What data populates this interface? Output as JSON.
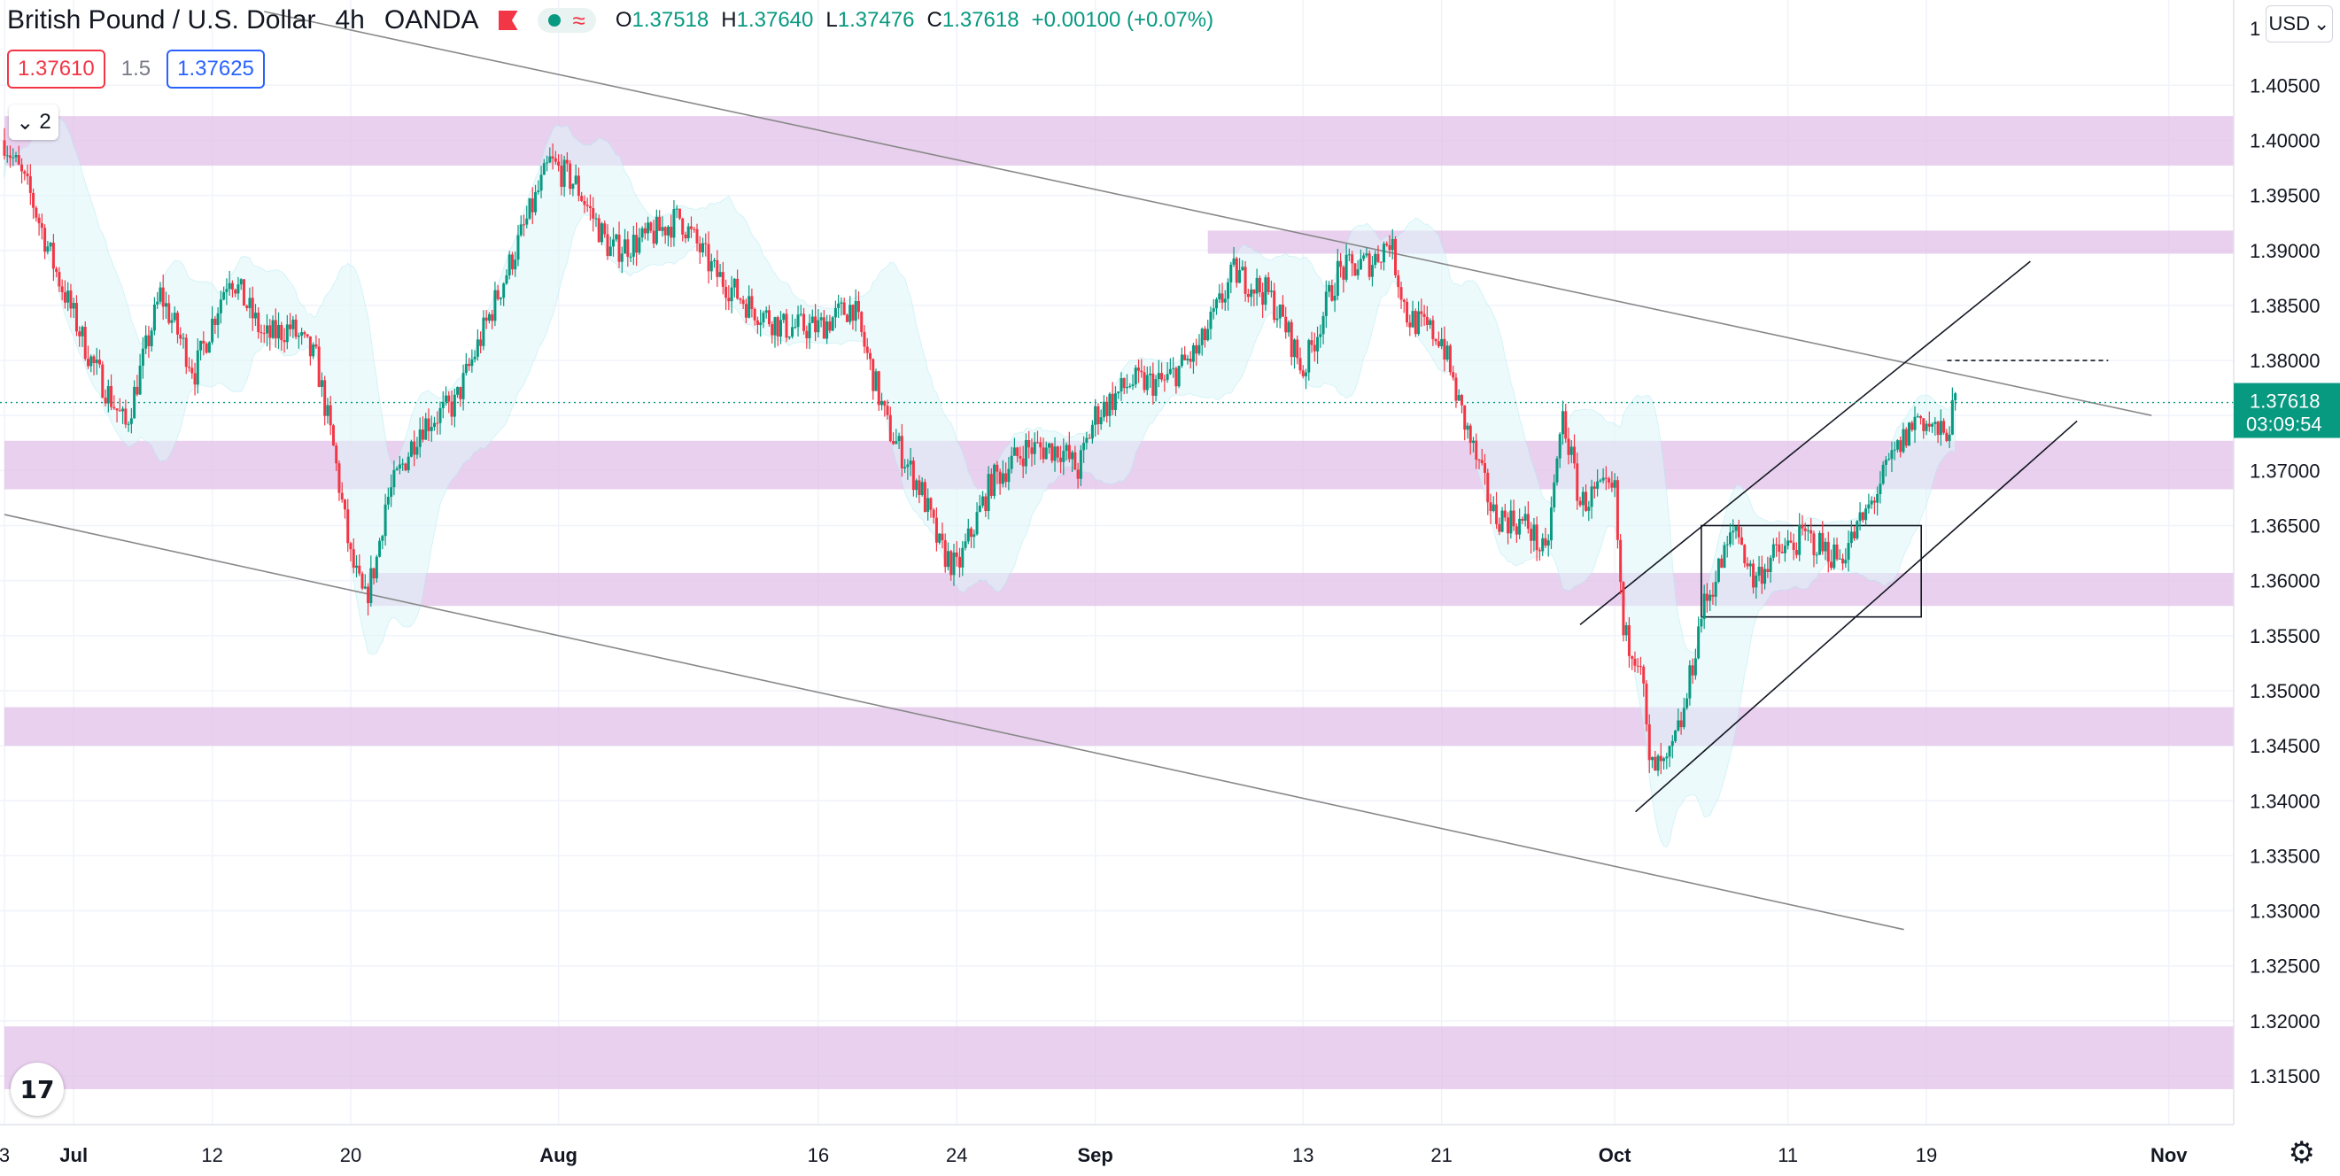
{
  "header": {
    "symbol": "British Pound / U.S. Dollar",
    "interval": "4h",
    "exchange": "OANDA",
    "ohlc": {
      "o_label": "O",
      "o": "1.37518",
      "h_label": "H",
      "h": "1.37640",
      "l_label": "L",
      "l": "1.37476",
      "c_label": "C",
      "c": "1.37618",
      "change": "+0.00100 (+0.07%)"
    }
  },
  "quote": {
    "sell": "1.37610",
    "spread": "1.5",
    "buy": "1.37625"
  },
  "indicators_count": "2",
  "currency_select": "USD",
  "last_price": {
    "value": "1.37618",
    "countdown": "03:09:54"
  },
  "colors": {
    "up": "#089981",
    "down": "#f23645",
    "zone": "#e1bee7",
    "bands": "#e0f7fa"
  },
  "icons": [
    "flag-icon",
    "eye-icon",
    "wave-icon",
    "chevron-down-icon",
    "tradingview-logo",
    "gear-icon"
  ],
  "chart_data": {
    "type": "candlestick",
    "symbol": "GBPUSD",
    "interval": "4h",
    "y_ticks": [
      "1.31500",
      "1.32000",
      "1.32500",
      "1.33000",
      "1.33500",
      "1.34000",
      "1.34500",
      "1.35000",
      "1.35500",
      "1.36000",
      "1.36500",
      "1.37000",
      "1.37500",
      "1.38000",
      "1.38500",
      "1.39000",
      "1.39500",
      "1.40000",
      "1.40500"
    ],
    "y_tick_values": [
      1.315,
      1.32,
      1.325,
      1.33,
      1.335,
      1.34,
      1.345,
      1.35,
      1.355,
      1.36,
      1.365,
      1.37,
      1.375,
      1.38,
      1.385,
      1.39,
      1.395,
      1.4,
      1.405
    ],
    "y_top_partial": "1",
    "ylim": [
      1.3105,
      1.4117
    ],
    "x_ticks": [
      {
        "label": "3",
        "day": 0
      },
      {
        "label": "Jul",
        "day": 4
      },
      {
        "label": "12",
        "day": 12
      },
      {
        "label": "20",
        "day": 20
      },
      {
        "label": "Aug",
        "day": 32
      },
      {
        "label": "16",
        "day": 47
      },
      {
        "label": "24",
        "day": 55
      },
      {
        "label": "Sep",
        "day": 63
      },
      {
        "label": "13",
        "day": 75
      },
      {
        "label": "21",
        "day": 83
      },
      {
        "label": "Oct",
        "day": 93
      },
      {
        "label": "11",
        "day": 103
      },
      {
        "label": "19",
        "day": 111
      },
      {
        "label": "Nov",
        "day": 125
      }
    ],
    "x_tick_bold": [
      "Jul",
      "Aug",
      "Sep",
      "Oct",
      "Nov"
    ],
    "xlim_days": [
      0,
      126.5
    ],
    "x_day0": "June 27",
    "price_path": [
      [
        0,
        1.4
      ],
      [
        1.5,
        1.395
      ],
      [
        3,
        1.388
      ],
      [
        5,
        1.38
      ],
      [
        7,
        1.374
      ],
      [
        9,
        1.386
      ],
      [
        11,
        1.379
      ],
      [
        13,
        1.388
      ],
      [
        15,
        1.382
      ],
      [
        16.5,
        1.383
      ],
      [
        18,
        1.38
      ],
      [
        19,
        1.372
      ],
      [
        20,
        1.362
      ],
      [
        20.8,
        1.358
      ],
      [
        21.5,
        1.362
      ],
      [
        22,
        1.367
      ],
      [
        24,
        1.374
      ],
      [
        26,
        1.376
      ],
      [
        28,
        1.384
      ],
      [
        30,
        1.392
      ],
      [
        31.5,
        1.398
      ],
      [
        33,
        1.396
      ],
      [
        35,
        1.39
      ],
      [
        37,
        1.391
      ],
      [
        39,
        1.393
      ],
      [
        41,
        1.388
      ],
      [
        43,
        1.385
      ],
      [
        45,
        1.383
      ],
      [
        47,
        1.383
      ],
      [
        49,
        1.385
      ],
      [
        51,
        1.374
      ],
      [
        53,
        1.368
      ],
      [
        54,
        1.363
      ],
      [
        55,
        1.361
      ],
      [
        57,
        1.369
      ],
      [
        59,
        1.372
      ],
      [
        61,
        1.372
      ],
      [
        62,
        1.37
      ],
      [
        63,
        1.375
      ],
      [
        65,
        1.378
      ],
      [
        67,
        1.378
      ],
      [
        69,
        1.381
      ],
      [
        71,
        1.388
      ],
      [
        73,
        1.386
      ],
      [
        74,
        1.383
      ],
      [
        75,
        1.379
      ],
      [
        77,
        1.388
      ],
      [
        79,
        1.389
      ],
      [
        80,
        1.391
      ],
      [
        81,
        1.384
      ],
      [
        83,
        1.382
      ],
      [
        84,
        1.376
      ],
      [
        86,
        1.366
      ],
      [
        88,
        1.365
      ],
      [
        89,
        1.362
      ],
      [
        90,
        1.375
      ],
      [
        91,
        1.367
      ],
      [
        92,
        1.368
      ],
      [
        93,
        1.368
      ],
      [
        93.5,
        1.355
      ],
      [
        94.5,
        1.353
      ],
      [
        95,
        1.343
      ],
      [
        96,
        1.343
      ],
      [
        97,
        1.348
      ],
      [
        98,
        1.357
      ],
      [
        100,
        1.365
      ],
      [
        101,
        1.36
      ],
      [
        102,
        1.362
      ],
      [
        104,
        1.364
      ],
      [
        106,
        1.362
      ],
      [
        107.5,
        1.366
      ],
      [
        109,
        1.371
      ],
      [
        110.5,
        1.375
      ],
      [
        112,
        1.373
      ],
      [
        112.7,
        1.376
      ]
    ],
    "zones": [
      {
        "from_day": 0,
        "low": 1.3977,
        "high": 1.4022
      },
      {
        "from_day": 69.5,
        "low": 1.3897,
        "high": 1.3918
      },
      {
        "from_day": 0,
        "low": 1.3683,
        "high": 1.3727
      },
      {
        "from_day": 21,
        "low": 1.3577,
        "high": 1.3607
      },
      {
        "from_day": 0,
        "low": 1.345,
        "high": 1.3485
      },
      {
        "from_day": 0,
        "low": 1.3138,
        "high": 1.3195
      }
    ],
    "trendlines": [
      {
        "name": "upper-channel",
        "from": [
          15,
          1.4117
        ],
        "to": [
          124,
          1.375
        ],
        "color": "#888888"
      },
      {
        "name": "lower-channel",
        "from": [
          0,
          1.366
        ],
        "to": [
          109.7,
          1.3283
        ],
        "color": "#888888"
      },
      {
        "name": "rising-top",
        "from": [
          91,
          1.356
        ],
        "to": [
          117,
          1.389
        ],
        "color": "#131722"
      },
      {
        "name": "rising-bottom",
        "from": [
          94.2,
          1.339
        ],
        "to": [
          119.7,
          1.3745
        ],
        "color": "#131722"
      }
    ],
    "rectangle": {
      "from_day": 98,
      "to_day": 110.7,
      "low": 1.3567,
      "high": 1.365
    },
    "dashed_level": {
      "from_day": 112.2,
      "to_day": 121.5,
      "value": 1.38
    },
    "last_price_line": 1.37618
  }
}
